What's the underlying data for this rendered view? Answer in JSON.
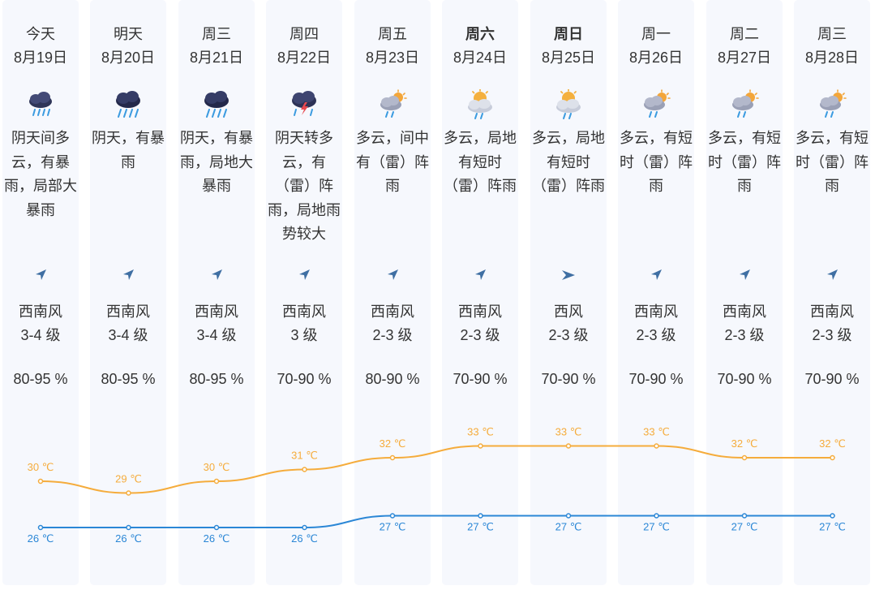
{
  "colors": {
    "high": "#f5ac3c",
    "low": "#2b87d6",
    "column_bg": "#f6f8fd"
  },
  "days": [
    {
      "day": "今天",
      "date": "8月19日",
      "weekend": false,
      "icon": "heavy-rain-cloud-icon",
      "desc": "阴天间多云，有暴雨，局部大暴雨",
      "wind_dir": "西南风",
      "wind_level": "3-4 级",
      "wind_icon": "southwest-wind-arrow-icon",
      "humidity": "80-95 %",
      "high": 30,
      "low": 26,
      "high_label": "30 ℃",
      "low_label": "26 ℃"
    },
    {
      "day": "明天",
      "date": "8月20日",
      "weekend": false,
      "icon": "rainstorm-cloud-icon",
      "desc": "阴天，有暴雨",
      "wind_dir": "西南风",
      "wind_level": "3-4 级",
      "wind_icon": "southwest-wind-arrow-icon",
      "humidity": "80-95 %",
      "high": 29,
      "low": 26,
      "high_label": "29 ℃",
      "low_label": "26 ℃"
    },
    {
      "day": "周三",
      "date": "8月21日",
      "weekend": false,
      "icon": "rainstorm-cloud-icon",
      "desc": "阴天，有暴雨，局地大暴雨",
      "wind_dir": "西南风",
      "wind_level": "3-4 级",
      "wind_icon": "southwest-wind-arrow-icon",
      "humidity": "80-95 %",
      "high": 30,
      "low": 26,
      "high_label": "30 ℃",
      "low_label": "26 ℃"
    },
    {
      "day": "周四",
      "date": "8月22日",
      "weekend": false,
      "icon": "thunderstorm-cloud-icon",
      "desc": "阴天转多云，有（雷）阵雨，局地雨势较大",
      "wind_dir": "西南风",
      "wind_level": "3 级",
      "wind_icon": "southwest-wind-arrow-icon",
      "humidity": "70-90 %",
      "high": 31,
      "low": 26,
      "high_label": "31 ℃",
      "low_label": "26 ℃"
    },
    {
      "day": "周五",
      "date": "8月23日",
      "weekend": false,
      "icon": "partly-cloudy-shower-icon",
      "desc": "多云，间中有（雷）阵雨",
      "wind_dir": "西南风",
      "wind_level": "2-3 级",
      "wind_icon": "southwest-wind-arrow-icon",
      "humidity": "80-90 %",
      "high": 32,
      "low": 27,
      "high_label": "32 ℃",
      "low_label": "27 ℃"
    },
    {
      "day": "周六",
      "date": "8月24日",
      "weekend": true,
      "icon": "sunny-cloud-shower-icon",
      "desc": "多云，局地有短时（雷）阵雨",
      "wind_dir": "西南风",
      "wind_level": "2-3 级",
      "wind_icon": "southwest-wind-arrow-icon",
      "humidity": "70-90 %",
      "high": 33,
      "low": 27,
      "high_label": "33 ℃",
      "low_label": "27 ℃"
    },
    {
      "day": "周日",
      "date": "8月25日",
      "weekend": true,
      "icon": "sunny-cloud-shower-icon",
      "desc": "多云，局地有短时（雷）阵雨",
      "wind_dir": "西风",
      "wind_level": "2-3 级",
      "wind_icon": "west-wind-arrow-icon",
      "humidity": "70-90 %",
      "high": 33,
      "low": 27,
      "high_label": "33 ℃",
      "low_label": "27 ℃"
    },
    {
      "day": "周一",
      "date": "8月26日",
      "weekend": false,
      "icon": "partly-cloudy-shower-icon",
      "desc": "多云，有短时（雷）阵雨",
      "wind_dir": "西南风",
      "wind_level": "2-3 级",
      "wind_icon": "southwest-wind-arrow-icon",
      "humidity": "70-90 %",
      "high": 33,
      "low": 27,
      "high_label": "33 ℃",
      "low_label": "27 ℃"
    },
    {
      "day": "周二",
      "date": "8月27日",
      "weekend": false,
      "icon": "partly-cloudy-shower-icon",
      "desc": "多云，有短时（雷）阵雨",
      "wind_dir": "西南风",
      "wind_level": "2-3 级",
      "wind_icon": "southwest-wind-arrow-icon",
      "humidity": "70-90 %",
      "high": 32,
      "low": 27,
      "high_label": "32 ℃",
      "low_label": "27 ℃"
    },
    {
      "day": "周三",
      "date": "8月28日",
      "weekend": false,
      "icon": "partly-cloudy-shower-icon",
      "desc": "多云，有短时（雷）阵雨",
      "wind_dir": "西南风",
      "wind_level": "2-3 级",
      "wind_icon": "southwest-wind-arrow-icon",
      "humidity": "70-90 %",
      "high": 32,
      "low": 27,
      "high_label": "32 ℃",
      "low_label": "27 ℃"
    }
  ]
}
